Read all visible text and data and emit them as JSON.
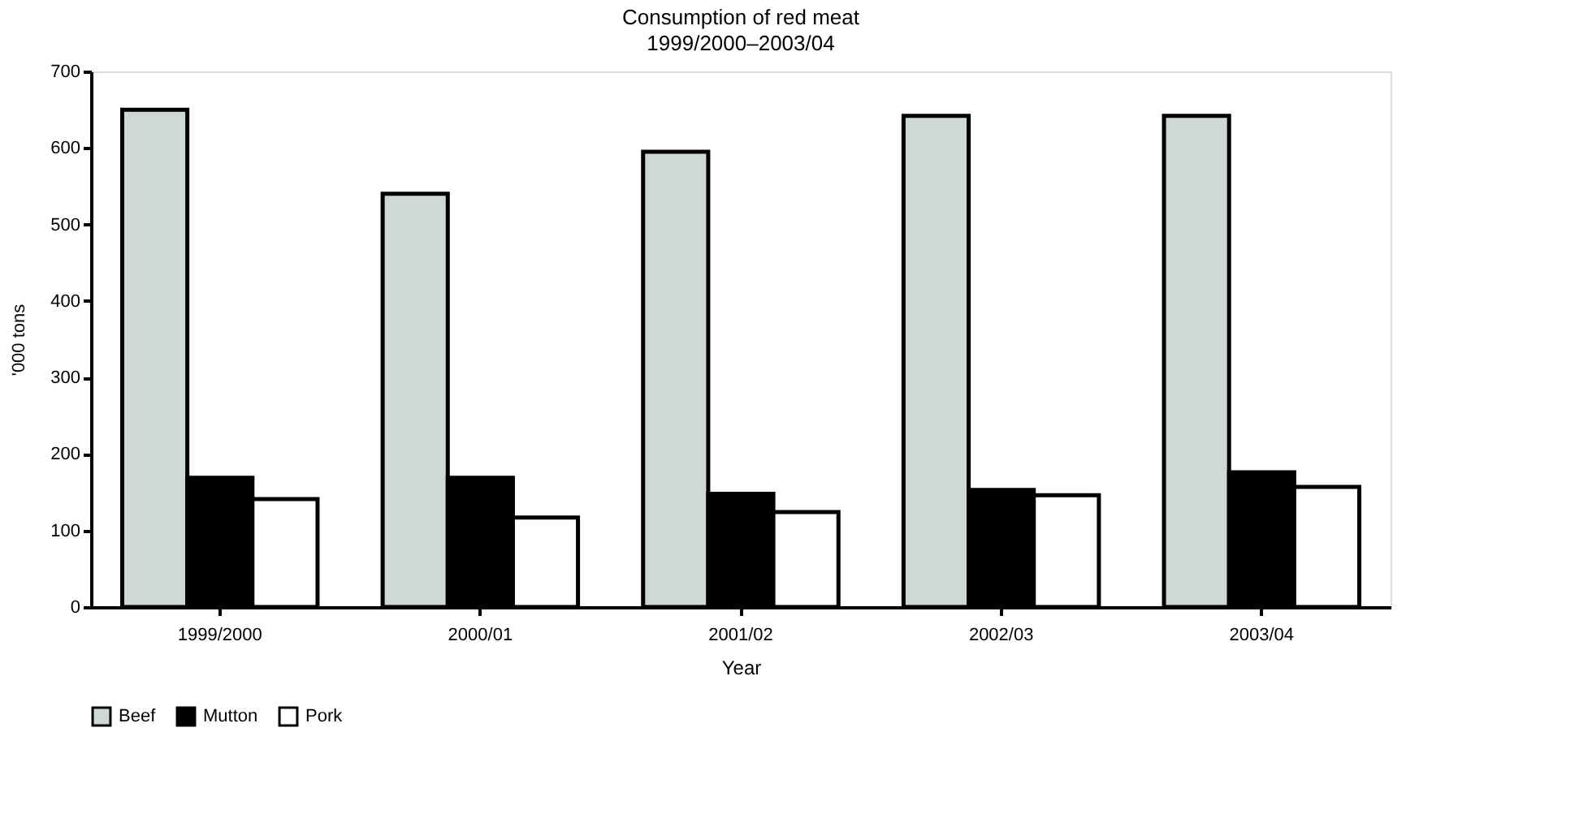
{
  "chart_data": {
    "type": "bar",
    "title": "Consumption of red meat",
    "subtitle": "1999/2000–2003/04",
    "xlabel": "Year",
    "ylabel": "'000 tons",
    "categories": [
      "1999/2000",
      "2000/01",
      "2001/02",
      "2002/03",
      "2003/04"
    ],
    "series": [
      {
        "name": "Beef",
        "color": "#d0d8d6",
        "values": [
          650,
          540,
          595,
          642,
          642
        ]
      },
      {
        "name": "Mutton",
        "color": "#000000",
        "values": [
          169,
          169,
          148,
          153,
          176
        ]
      },
      {
        "name": "Pork",
        "color": "#ffffff",
        "values": [
          141,
          117,
          124,
          146,
          157
        ]
      }
    ],
    "ylim": [
      0,
      700
    ],
    "yticks": [
      0,
      100,
      200,
      300,
      400,
      500,
      600,
      700
    ],
    "grid": false,
    "legend": "bottom"
  }
}
